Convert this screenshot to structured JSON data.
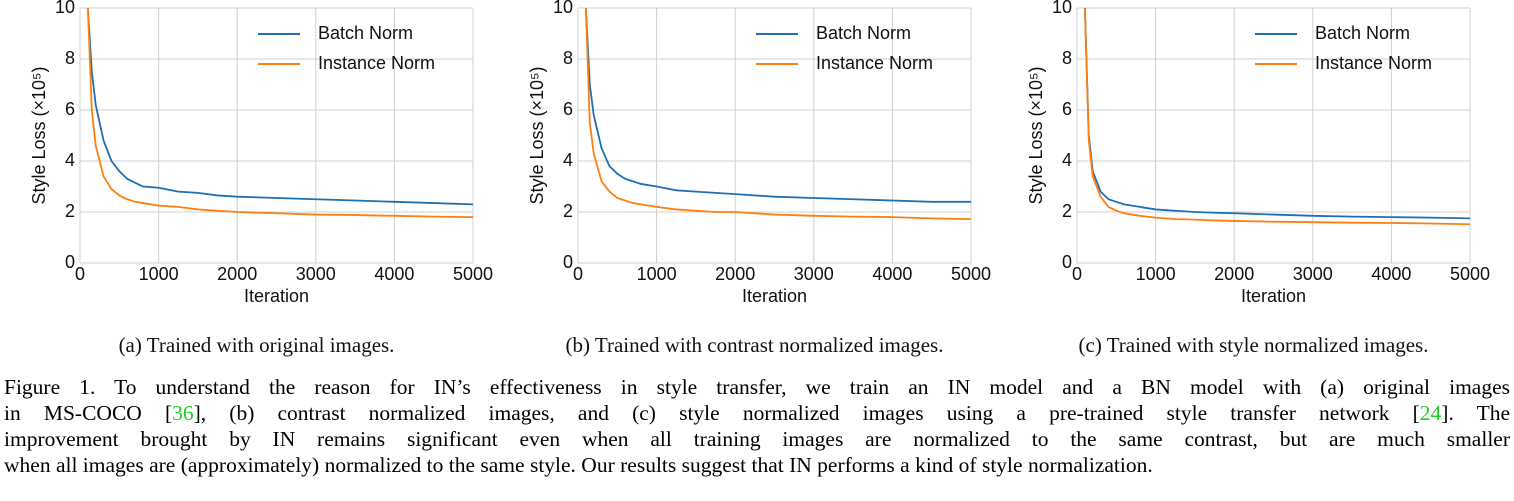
{
  "chart_data": [
    {
      "type": "line",
      "caption": "(a)  Trained with original images.",
      "xlabel": "Iteration",
      "ylabel": "Style Loss (×10⁵)",
      "x": [
        100,
        150,
        200,
        300,
        400,
        500,
        600,
        700,
        800,
        1000,
        1250,
        1500,
        1750,
        2000,
        2500,
        3000,
        3500,
        4000,
        4500,
        5000
      ],
      "series": [
        {
          "name": "Batch Norm",
          "color": "#1f6fb4",
          "values": [
            10,
            7.5,
            6.2,
            4.8,
            4.0,
            3.6,
            3.3,
            3.15,
            3.0,
            2.95,
            2.8,
            2.75,
            2.65,
            2.6,
            2.55,
            2.5,
            2.45,
            2.4,
            2.35,
            2.3
          ]
        },
        {
          "name": "Instance Norm",
          "color": "#ff7f0e",
          "values": [
            10,
            6.0,
            4.6,
            3.4,
            2.9,
            2.65,
            2.5,
            2.4,
            2.35,
            2.25,
            2.2,
            2.1,
            2.05,
            2.0,
            1.95,
            1.9,
            1.88,
            1.85,
            1.82,
            1.8
          ]
        }
      ],
      "xlim": [
        0,
        5000
      ],
      "ylim": [
        0,
        10
      ],
      "xticks": [
        0,
        1000,
        2000,
        3000,
        4000,
        5000
      ],
      "yticks": [
        0,
        2,
        4,
        6,
        8,
        10
      ],
      "grid": true,
      "legend": "upper right"
    },
    {
      "type": "line",
      "caption": "(b)  Trained with contrast normalized images.",
      "xlabel": "Iteration",
      "ylabel": "Style Loss (×10⁵)",
      "x": [
        100,
        150,
        200,
        300,
        400,
        500,
        600,
        700,
        800,
        1000,
        1250,
        1500,
        1750,
        2000,
        2500,
        3000,
        3500,
        4000,
        4500,
        5000
      ],
      "series": [
        {
          "name": "Batch Norm",
          "color": "#1f6fb4",
          "values": [
            10,
            7.0,
            5.8,
            4.5,
            3.8,
            3.5,
            3.3,
            3.2,
            3.1,
            3.0,
            2.85,
            2.8,
            2.75,
            2.7,
            2.6,
            2.55,
            2.5,
            2.45,
            2.4,
            2.4
          ]
        },
        {
          "name": "Instance Norm",
          "color": "#ff7f0e",
          "values": [
            10,
            5.5,
            4.3,
            3.2,
            2.8,
            2.55,
            2.45,
            2.35,
            2.3,
            2.2,
            2.1,
            2.05,
            2.0,
            2.0,
            1.9,
            1.85,
            1.82,
            1.8,
            1.75,
            1.72
          ]
        }
      ],
      "xlim": [
        0,
        5000
      ],
      "ylim": [
        0,
        10
      ],
      "xticks": [
        0,
        1000,
        2000,
        3000,
        4000,
        5000
      ],
      "yticks": [
        0,
        2,
        4,
        6,
        8,
        10
      ],
      "grid": true,
      "legend": "upper right"
    },
    {
      "type": "line",
      "caption": "(c)  Trained with style normalized images.",
      "xlabel": "Iteration",
      "ylabel": "Style Loss (×10⁵)",
      "x": [
        100,
        150,
        200,
        300,
        400,
        500,
        600,
        700,
        800,
        1000,
        1250,
        1500,
        1750,
        2000,
        2500,
        3000,
        3500,
        4000,
        4500,
        5000
      ],
      "series": [
        {
          "name": "Batch Norm",
          "color": "#1f6fb4",
          "values": [
            10,
            5.0,
            3.6,
            2.8,
            2.5,
            2.4,
            2.3,
            2.25,
            2.2,
            2.1,
            2.05,
            2.0,
            1.97,
            1.95,
            1.9,
            1.85,
            1.82,
            1.8,
            1.78,
            1.75
          ]
        },
        {
          "name": "Instance Norm",
          "color": "#ff7f0e",
          "values": [
            10,
            4.8,
            3.4,
            2.6,
            2.2,
            2.05,
            1.95,
            1.9,
            1.85,
            1.78,
            1.72,
            1.7,
            1.67,
            1.65,
            1.62,
            1.6,
            1.58,
            1.57,
            1.55,
            1.52
          ]
        }
      ],
      "xlim": [
        0,
        5000
      ],
      "ylim": [
        0,
        10
      ],
      "xticks": [
        0,
        1000,
        2000,
        3000,
        4000,
        5000
      ],
      "yticks": [
        0,
        2,
        4,
        6,
        8,
        10
      ],
      "grid": true,
      "legend": "upper right"
    }
  ],
  "figure_caption": {
    "lines": [
      [
        "Figure 1. To understand the reason for IN’s effectiveness in style transfer, we train an IN model and a BN model with (a) original images"
      ],
      [
        "in MS-COCO [",
        "36",
        "], (b) contrast normalized images, and (c) style normalized images using a pre-trained style transfer network [",
        "24",
        "]. The"
      ],
      [
        "improvement brought by IN remains significant even when all training images are normalized to the same contrast, but are much smaller"
      ],
      [
        "when all images are (approximately) normalized to the same style. Our results suggest that IN performs a kind of style normalization."
      ]
    ]
  }
}
